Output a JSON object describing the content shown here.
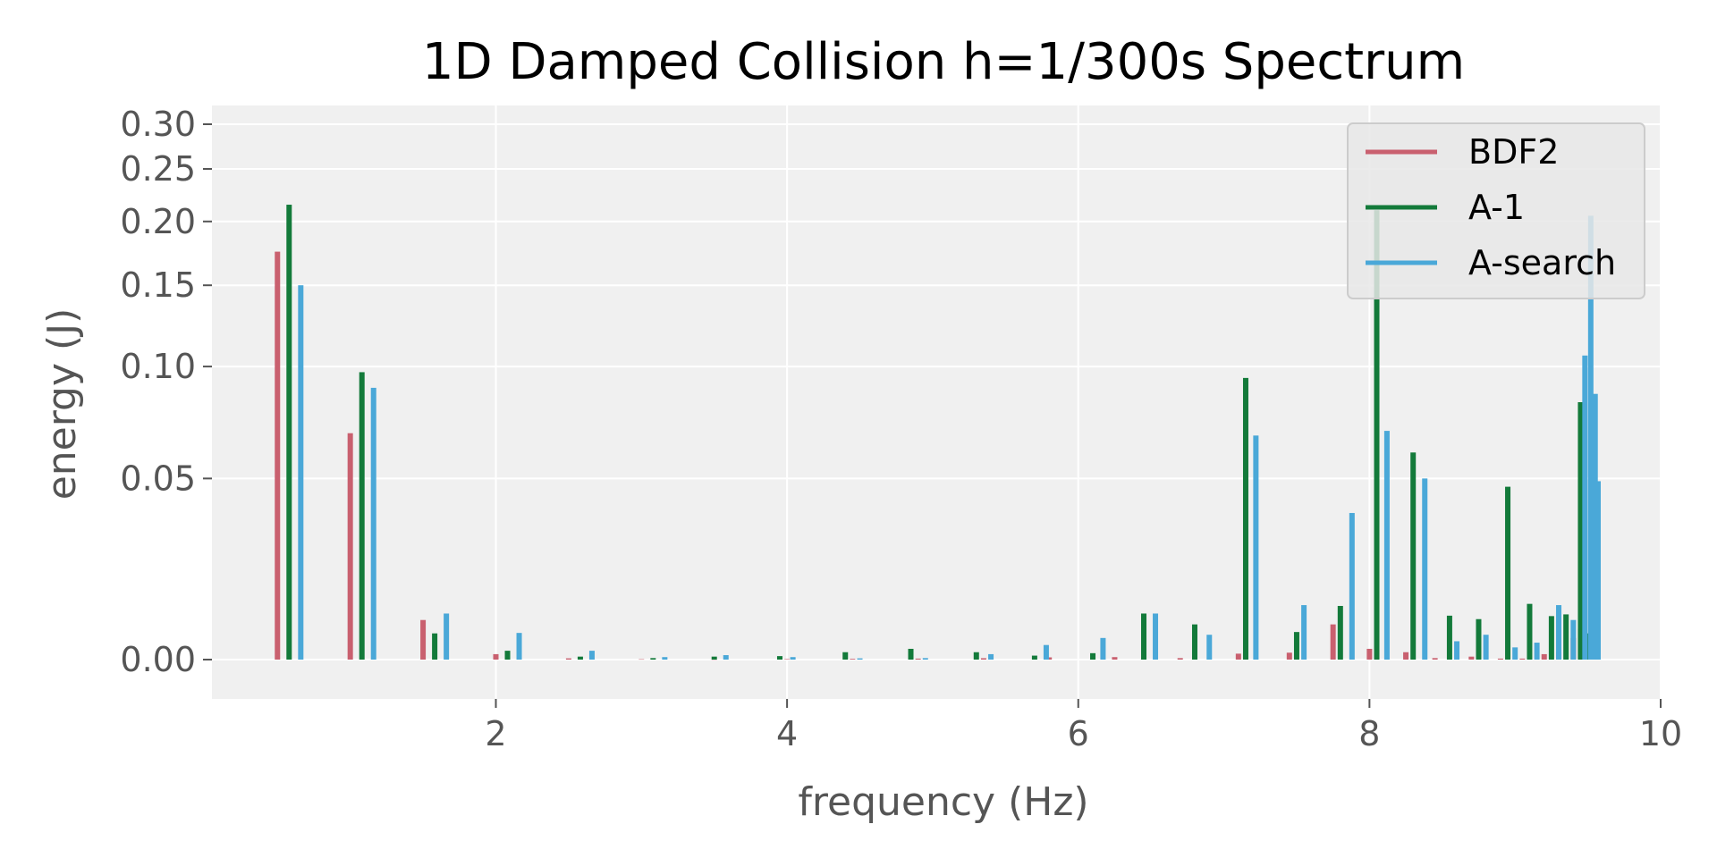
{
  "chart_data": {
    "type": "bar",
    "title": "1D Damped Collision h=1/300s Spectrum",
    "xlabel": "frequency (Hz)",
    "ylabel": "energy (J)",
    "xlim": [
      0.05,
      10
    ],
    "ylim": [
      -0.0013,
      0.33
    ],
    "y_scale": "symlog",
    "grid": true,
    "legend_position": "top-right",
    "x_ticks": [
      {
        "value": 2,
        "label": "2"
      },
      {
        "value": 4,
        "label": "4"
      },
      {
        "value": 6,
        "label": "6"
      },
      {
        "value": 8,
        "label": "8"
      },
      {
        "value": 10,
        "label": "10"
      }
    ],
    "y_ticks": [
      {
        "value": 0.0,
        "label": "0.00"
      },
      {
        "value": 0.05,
        "label": "0.05"
      },
      {
        "value": 0.1,
        "label": "0.10"
      },
      {
        "value": 0.15,
        "label": "0.15"
      },
      {
        "value": 0.2,
        "label": "0.20"
      },
      {
        "value": 0.25,
        "label": "0.25"
      },
      {
        "value": 0.3,
        "label": "0.30"
      }
    ],
    "series": [
      {
        "name": "BDF2",
        "color": "#c9606f",
        "x": [
          0.5,
          1.0,
          1.5,
          2.0,
          2.5,
          3.0,
          3.5,
          4.0,
          4.45,
          4.9,
          5.35,
          5.8,
          6.25,
          6.7,
          7.1,
          7.45,
          7.75,
          8.0,
          8.25,
          8.45,
          8.7,
          8.9,
          9.05,
          9.2,
          9.3,
          9.4,
          9.45
        ],
        "values": [
          0.175,
          0.068,
          0.0085,
          0.0011,
          0.00025,
          8e-05,
          5e-05,
          0.0001,
          0.00015,
          0.0002,
          0.00028,
          0.00045,
          0.0005,
          0.0003,
          0.0012,
          0.0014,
          0.0075,
          0.0022,
          0.0015,
          0.0003,
          0.0006,
          0.0002,
          0.0002,
          0.0011,
          0.0015,
          0.0045,
          0.0065
        ]
      },
      {
        "name": "A-1",
        "color": "#137a3a",
        "x": [
          0.58,
          1.08,
          1.58,
          2.08,
          2.58,
          3.08,
          3.5,
          3.95,
          4.4,
          4.85,
          5.3,
          5.7,
          6.1,
          6.45,
          6.8,
          7.15,
          7.5,
          7.8,
          8.05,
          8.3,
          8.55,
          8.75,
          8.95,
          9.1,
          9.25,
          9.35,
          9.45,
          9.5
        ],
        "values": [
          0.215,
          0.097,
          0.0055,
          0.0018,
          0.0006,
          0.0003,
          0.0006,
          0.0007,
          0.0015,
          0.0022,
          0.0015,
          0.0008,
          0.0013,
          0.01,
          0.0075,
          0.094,
          0.0058,
          0.0118,
          0.21,
          0.06,
          0.0095,
          0.0087,
          0.047,
          0.0123,
          0.0094,
          0.0098,
          0.082,
          0.0055
        ]
      },
      {
        "name": "A-search",
        "color": "#4aa8d8",
        "x": [
          0.66,
          1.16,
          1.66,
          2.16,
          2.66,
          3.16,
          3.58,
          4.04,
          4.5,
          4.95,
          5.4,
          5.78,
          6.17,
          6.53,
          6.9,
          7.22,
          7.55,
          7.88,
          8.12,
          8.38,
          8.6,
          8.8,
          9.0,
          9.15,
          9.3,
          9.4,
          9.48,
          9.52,
          9.55,
          9.57
        ],
        "values": [
          0.15,
          0.089,
          0.01,
          0.0056,
          0.0018,
          0.0005,
          0.0009,
          0.0005,
          0.00025,
          0.0003,
          0.0011,
          0.003,
          0.0045,
          0.01,
          0.0052,
          0.067,
          0.012,
          0.038,
          0.069,
          0.05,
          0.0038,
          0.0052,
          0.0025,
          0.0035,
          0.012,
          0.0085,
          0.106,
          0.205,
          0.086,
          0.049
        ]
      }
    ]
  }
}
